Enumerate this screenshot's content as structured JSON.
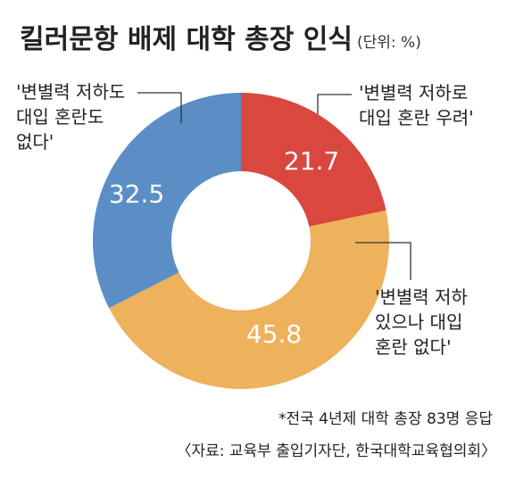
{
  "title": "킬러문항 배제 대학 총장 인식",
  "unit": "(단위: %)",
  "footnote": "*전국 4년제 대학 총장 83명 응답",
  "source": "〈자료: 교육부 출입기자단, 한국대학교육협의회〉",
  "chart_data": {
    "type": "pie",
    "donut": true,
    "title": "킬러문항 배제 대학 총장 인식",
    "unit": "(단위: %)",
    "slices": [
      {
        "value": 21.7,
        "value_label": "21.7",
        "label_lines": [
          "'변별력 저하로",
          "대입 혼란 우려'"
        ],
        "color": "#d9473f"
      },
      {
        "value": 45.8,
        "value_label": "45.8",
        "label_lines": [
          "'변별력 저하",
          "있으나 대입",
          "혼란 없다'"
        ],
        "color": "#eeb15c"
      },
      {
        "value": 32.5,
        "value_label": "32.5",
        "label_lines": [
          "'변별력 저하도",
          "대입 혼란도",
          "없다'"
        ],
        "color": "#5b8ec4"
      }
    ]
  }
}
